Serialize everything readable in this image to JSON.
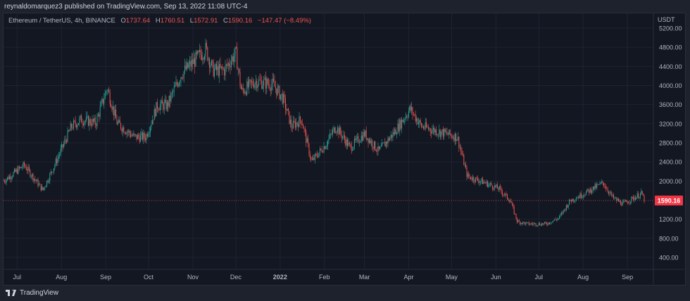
{
  "published": "reynaldomarquez3 published on TradingView.com, Sep 13, 2022 11:08 UTC-4",
  "legend": {
    "symbol": "Ethereum / TetherUS, 4h, BINANCE",
    "o_label": "O",
    "o": "1737.64",
    "h_label": "H",
    "h": "1760.51",
    "l_label": "L",
    "l": "1572.91",
    "c_label": "C",
    "c": "1590.16",
    "change": "−147.47 (−8.49%)"
  },
  "brand": "TradingView",
  "colors": {
    "up": "#26a69a",
    "down": "#ef5350",
    "background": "#131722",
    "grid": "#1f2330",
    "last_price": "#f23645"
  },
  "chart_data": {
    "type": "candlestick",
    "title": "Ethereum / TetherUS, 4h, BINANCE",
    "ylabel": "USDT",
    "ylim": [
      0,
      5400
    ],
    "grid": true,
    "y_ticks": [
      "5200.00",
      "4800.00",
      "4400.00",
      "4000.00",
      "3600.00",
      "3200.00",
      "2800.00",
      "2400.00",
      "2000.00",
      "1200.00",
      "800.00",
      "400.00"
    ],
    "x_ticks": [
      {
        "label": "Jul",
        "date": "2021-07-01"
      },
      {
        "label": "Aug",
        "date": "2021-08-01"
      },
      {
        "label": "Sep",
        "date": "2021-09-01"
      },
      {
        "label": "Oct",
        "date": "2021-10-01"
      },
      {
        "label": "Nov",
        "date": "2021-11-01"
      },
      {
        "label": "Dec",
        "date": "2021-12-01"
      },
      {
        "label": "2022",
        "date": "2022-01-01"
      },
      {
        "label": "Feb",
        "date": "2022-02-01"
      },
      {
        "label": "Mar",
        "date": "2022-03-01"
      },
      {
        "label": "Apr",
        "date": "2022-04-01"
      },
      {
        "label": "May",
        "date": "2022-05-01"
      },
      {
        "label": "Jun",
        "date": "2022-06-01"
      },
      {
        "label": "Jul",
        "date": "2022-07-01"
      },
      {
        "label": "Aug",
        "date": "2022-08-01"
      },
      {
        "label": "Sep",
        "date": "2022-09-01"
      }
    ],
    "last_price": "1590.16",
    "price_path": [
      [
        "2021-06-21",
        2000
      ],
      [
        "2021-06-23",
        2030
      ],
      [
        "2021-07-06",
        2330
      ],
      [
        "2021-07-19",
        1810
      ],
      [
        "2021-07-26",
        2250
      ],
      [
        "2021-08-08",
        3140
      ],
      [
        "2021-08-15",
        3290
      ],
      [
        "2021-08-25",
        3210
      ],
      [
        "2021-09-02",
        3950
      ],
      [
        "2021-09-09",
        3210
      ],
      [
        "2021-09-21",
        2920
      ],
      [
        "2021-09-29",
        2920
      ],
      [
        "2021-10-07",
        3580
      ],
      [
        "2021-10-14",
        3580
      ],
      [
        "2021-10-24",
        4240
      ],
      [
        "2021-11-10",
        4760
      ],
      [
        "2021-11-15",
        4320
      ],
      [
        "2021-11-23",
        4320
      ],
      [
        "2021-12-01",
        4680
      ],
      [
        "2021-12-05",
        3870
      ],
      [
        "2021-12-15",
        4090
      ],
      [
        "2021-12-27",
        4020
      ],
      [
        "2022-01-03",
        3730
      ],
      [
        "2022-01-09",
        3140
      ],
      [
        "2022-01-16",
        3290
      ],
      [
        "2022-01-23",
        2400
      ],
      [
        "2022-02-02",
        2770
      ],
      [
        "2022-02-09",
        3140
      ],
      [
        "2022-02-19",
        2700
      ],
      [
        "2022-03-01",
        2990
      ],
      [
        "2022-03-11",
        2620
      ],
      [
        "2022-03-23",
        3060
      ],
      [
        "2022-04-02",
        3510
      ],
      [
        "2022-04-10",
        3140
      ],
      [
        "2022-04-27",
        2990
      ],
      [
        "2022-05-05",
        2920
      ],
      [
        "2022-05-12",
        2100
      ],
      [
        "2022-05-22",
        1990
      ],
      [
        "2022-06-03",
        1840
      ],
      [
        "2022-06-11",
        1590
      ],
      [
        "2022-06-16",
        1150
      ],
      [
        "2022-06-23",
        1100
      ],
      [
        "2022-07-06",
        1100
      ],
      [
        "2022-07-15",
        1220
      ],
      [
        "2022-07-23",
        1590
      ],
      [
        "2022-08-02",
        1740
      ],
      [
        "2022-08-15",
        1960
      ],
      [
        "2022-08-22",
        1640
      ],
      [
        "2022-08-29",
        1520
      ],
      [
        "2022-09-11",
        1740
      ],
      [
        "2022-09-13",
        1590.16
      ]
    ]
  }
}
